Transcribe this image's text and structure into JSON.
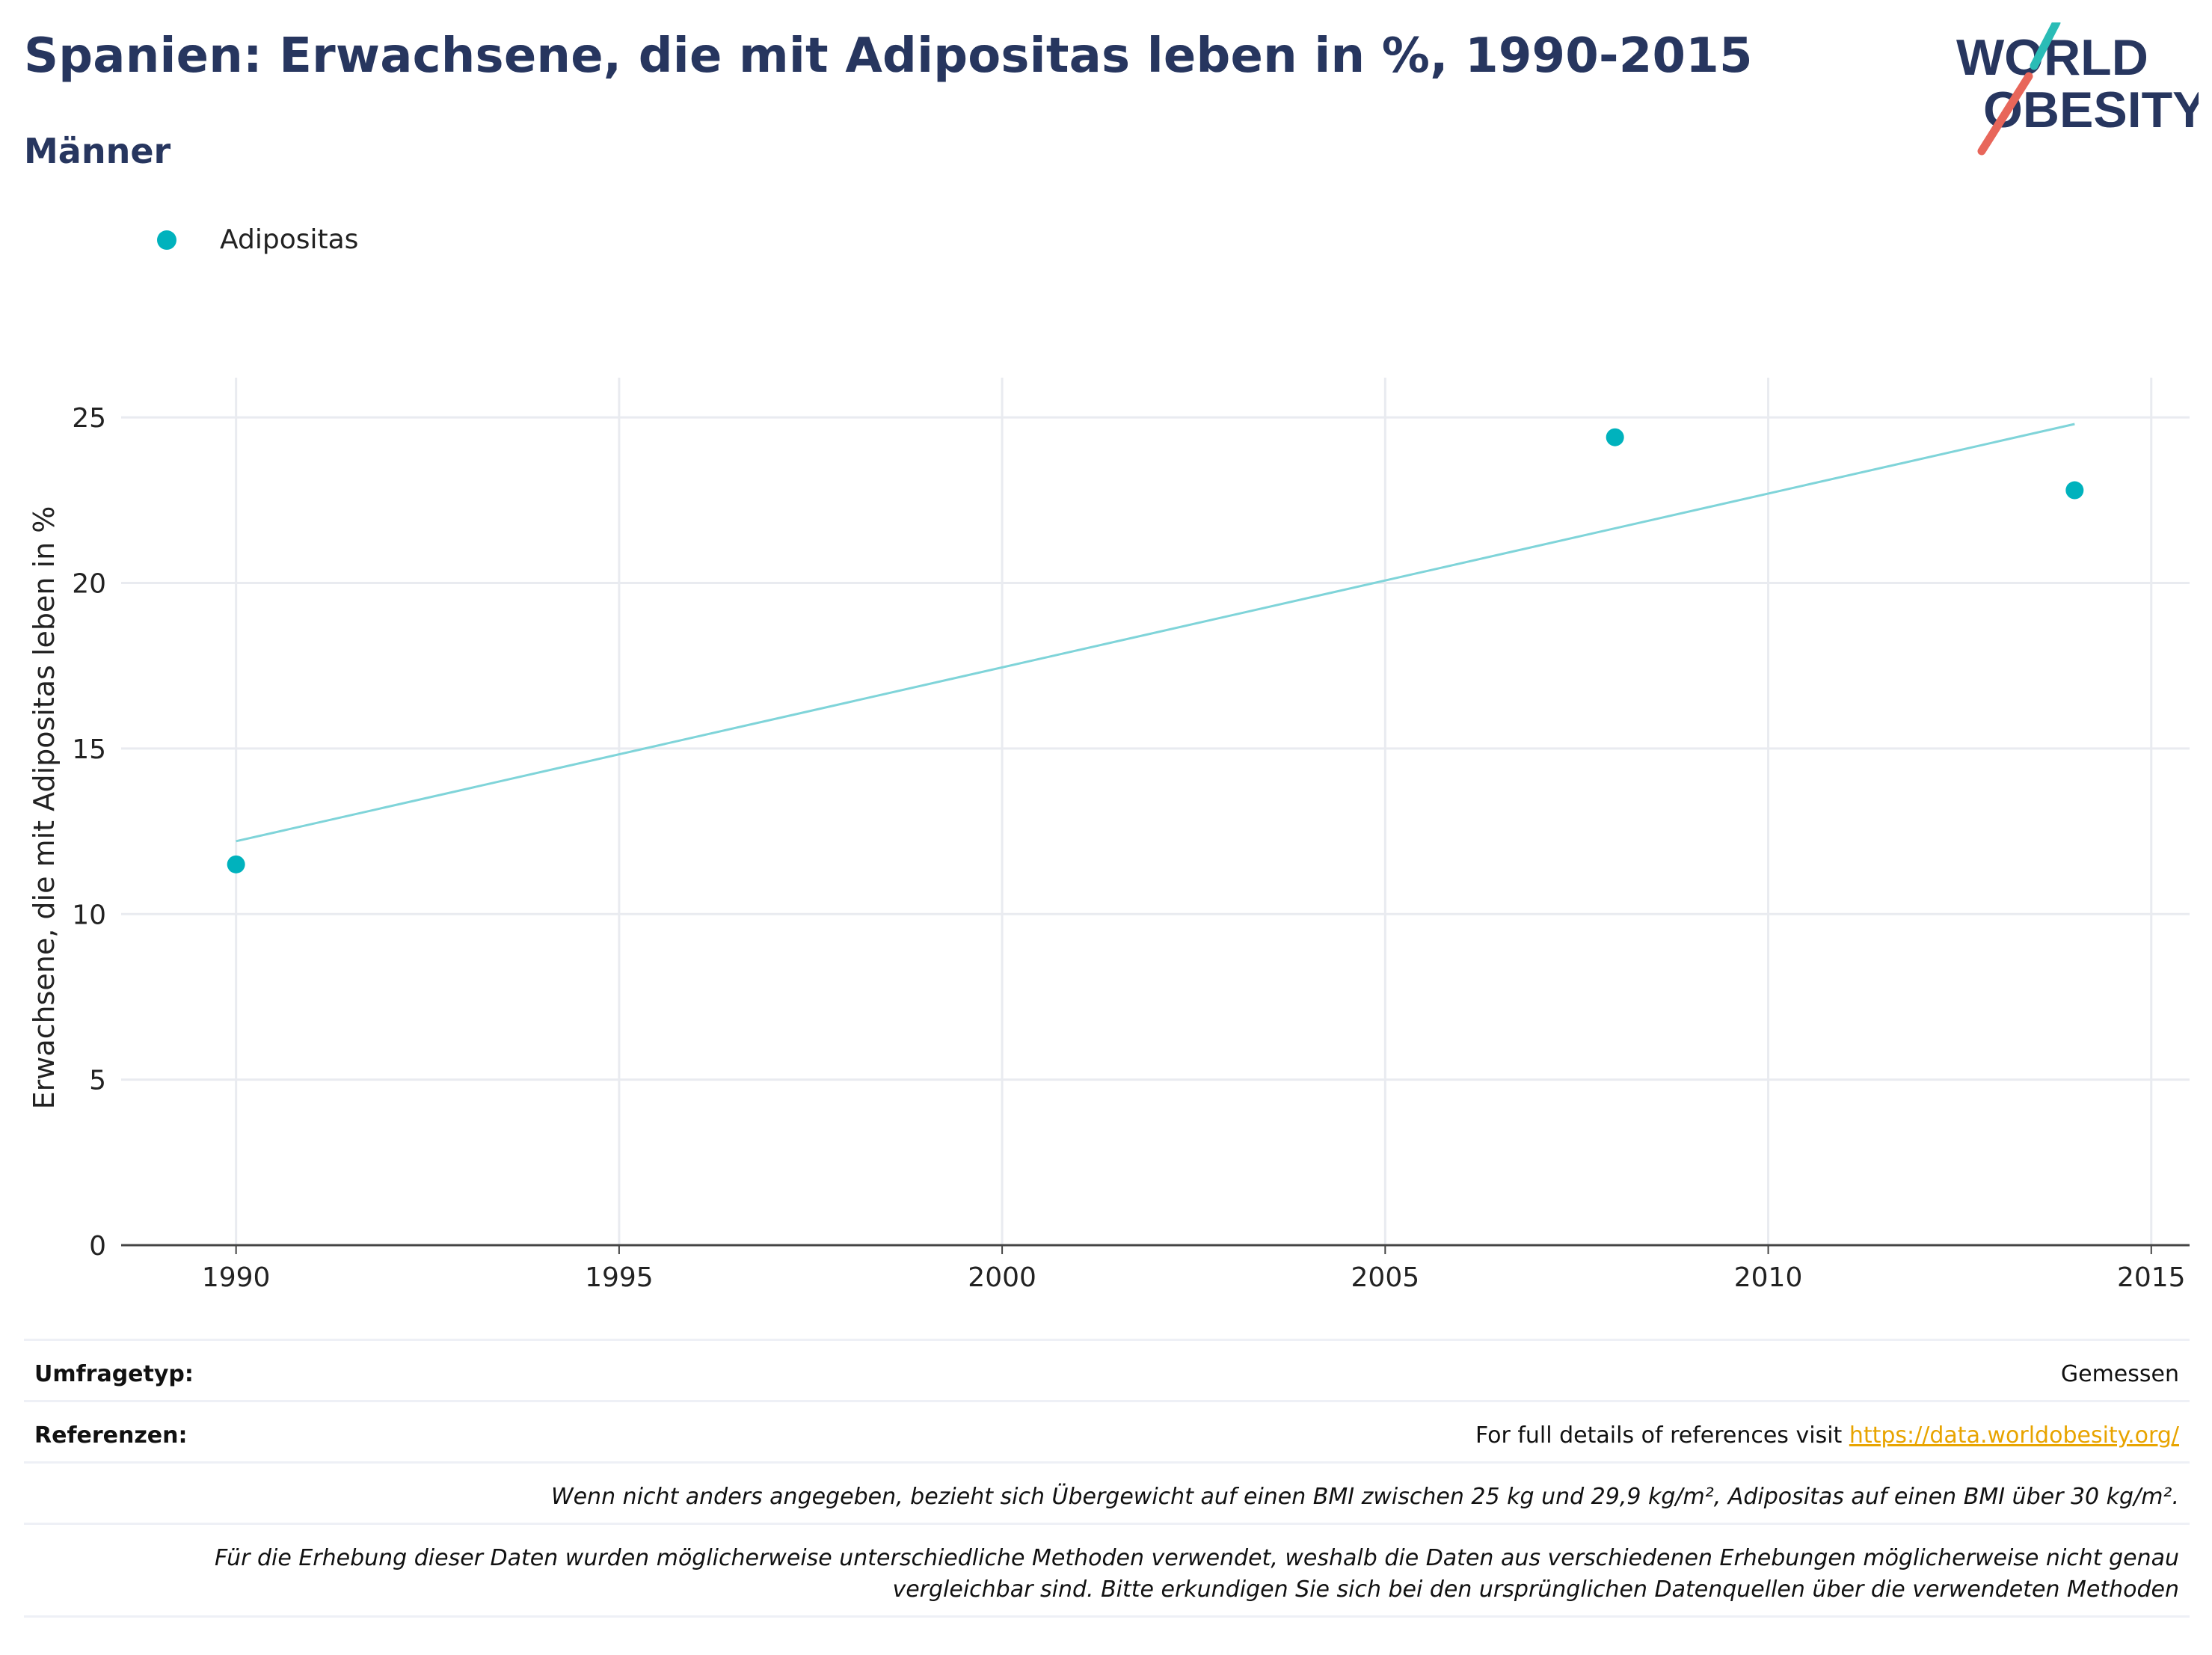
{
  "header": {
    "title": "Spanien: Erwachsene, die mit Adipositas leben in %, 1990-2015",
    "subtitle": "Männer",
    "logo_line1": "WORLD",
    "logo_line2": "OBESITY"
  },
  "legend": {
    "label": "Adipositas",
    "color": "#00b2bd"
  },
  "chart_data": {
    "type": "scatter",
    "ylabel": "Erwachsene, die mit Adipositas leben in %",
    "xlabel": "",
    "xlim": [
      1988.5,
      2015.5
    ],
    "ylim": [
      0,
      26.2
    ],
    "x_ticks": [
      1990,
      1995,
      2000,
      2005,
      2010,
      2015
    ],
    "y_ticks": [
      0,
      5,
      10,
      15,
      20,
      25
    ],
    "grid": true,
    "legend_position": "top-left",
    "series": [
      {
        "name": "Adipositas",
        "color": "#00b2bd",
        "points": [
          {
            "x": 1990,
            "y": 11.5
          },
          {
            "x": 2008,
            "y": 24.4
          },
          {
            "x": 2014,
            "y": 22.8
          }
        ]
      }
    ],
    "trendline": {
      "color": "#7fd4d9",
      "points": [
        {
          "x": 1990,
          "y": 12.2
        },
        {
          "x": 2014,
          "y": 24.8
        }
      ]
    }
  },
  "info": {
    "survey_label": "Umfragetyp:",
    "survey_value": "Gemessen",
    "refs_label": "Referenzen:",
    "refs_text": "For full details of references visit ",
    "refs_link": "https://data.worldobesity.org/",
    "note1": "Wenn nicht anders angegeben, bezieht sich Übergewicht auf einen BMI zwischen 25 kg und 29,9 kg/m², Adipositas auf einen BMI über 30 kg/m².",
    "note2_line1": "Für die Erhebung dieser Daten wurden möglicherweise unterschiedliche Methoden verwendet, weshalb die Daten aus verschiedenen Erhebungen möglicherweise nicht genau",
    "note2_line2": "vergleichbar sind. Bitte erkundigen Sie sich bei den ursprünglichen Datenquellen über die verwendeten Methoden"
  }
}
